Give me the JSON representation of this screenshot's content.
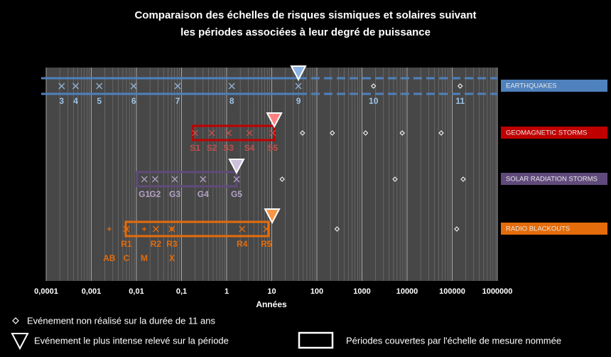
{
  "chart_data": {
    "type": "scale-timeline",
    "title_lines": [
      "Comparaison des échelles de risques sismiques et solaires suivant",
      "les périodes associées à leur degré de puissance"
    ],
    "xlabel": "Années",
    "x_log": true,
    "xlim": [
      0.0001,
      1000000
    ],
    "xticks": [
      {
        "value": 0.0001,
        "label": "0,0001"
      },
      {
        "value": 0.001,
        "label": "0,001"
      },
      {
        "value": 0.01,
        "label": "0,01"
      },
      {
        "value": 0.1,
        "label": "0,1"
      },
      1,
      10,
      100,
      1000,
      10000,
      100000,
      1000000
    ],
    "grid": true,
    "rows": [
      {
        "name": "EARTHQUAKES",
        "color": "#4f81bd",
        "mark_color": "#95b3d7",
        "label_color": "#9dc3e6",
        "triangle_color": "#8db4e2",
        "box_style": "open",
        "box": [
          0.0001,
          39
        ],
        "levels": [
          {
            "label": "3",
            "x": 0.00022
          },
          {
            "label": "4",
            "x": 0.00045
          },
          {
            "label": "5",
            "x": 0.0015
          },
          {
            "label": "6",
            "x": 0.0087
          },
          {
            "label": "7",
            "x": 0.082
          },
          {
            "label": "8",
            "x": 1.3
          },
          {
            "label": "9",
            "x": 39
          },
          {
            "label": "10",
            "x": 1800
          },
          {
            "label": "11",
            "x": 150000
          }
        ],
        "unrealized": [
          1800,
          150000
        ],
        "max_event": 39
      },
      {
        "name": "GEOMAGNETIC STORMS",
        "color": "#c00000",
        "mark_color": "#c0504d",
        "label_color": "#c0504d",
        "triangle_color": "#ff8080",
        "box_style": "box",
        "box": [
          0.18,
          11.4
        ],
        "levels": [
          {
            "label": "S1",
            "x": 0.2
          },
          {
            "label": "S2",
            "x": 0.47
          },
          {
            "label": "S3",
            "x": 1.1
          },
          {
            "label": "S4",
            "x": 3.2
          },
          {
            "label": "S5",
            "x": 10.5
          }
        ],
        "unrealized": [
          48,
          220,
          1200,
          7800,
          57000
        ],
        "max_event": 11.4
      },
      {
        "name": "SOLAR RADIATION STORMS",
        "color": "#604a7b",
        "mark_color": "#b3a2c7",
        "label_color": "#b3a2c7",
        "triangle_color": "#ccc0da",
        "box_style": "box",
        "box": [
          0.0104,
          1.66
        ],
        "levels": [
          {
            "label": "G1",
            "x": 0.015
          },
          {
            "label": "G2",
            "x": 0.026
          },
          {
            "label": "G3",
            "x": 0.071
          },
          {
            "label": "G4",
            "x": 0.3
          },
          {
            "label": "G5",
            "x": 1.66
          }
        ],
        "unrealized": [
          17,
          5400,
          175000
        ],
        "max_event": 1.66
      },
      {
        "name": "RADIO BLACKOUTS",
        "color": "#e46c0a",
        "mark_color": "#e46c0a",
        "label_color": "#e46c0a",
        "triangle_color": "#f79646",
        "box_style": "box",
        "box": [
          0.0058,
          8.5
        ],
        "levels": [
          {
            "label": "R1",
            "x": 0.006
          },
          {
            "label": "R2",
            "x": 0.027
          },
          {
            "label": "R3",
            "x": 0.061
          },
          {
            "label": "R4",
            "x": 2.2
          },
          {
            "label": "R5",
            "x": 7.6
          }
        ],
        "classes": [
          {
            "label": "AB",
            "x": 0.0025
          },
          {
            "label": "C",
            "x": 0.006
          },
          {
            "label": "M",
            "x": 0.0149
          },
          {
            "label": "X",
            "x": 0.061
          }
        ],
        "unrealized": [
          280,
          126000
        ],
        "max_event": 10.2
      }
    ],
    "legend": {
      "unrealized": "Evénement non réalisé sur la durée de 11 ans",
      "max_event": "Evénement le plus intense relevé sur la période",
      "box": "Périodes couvertes par l'échelle de mesure nommée"
    }
  }
}
